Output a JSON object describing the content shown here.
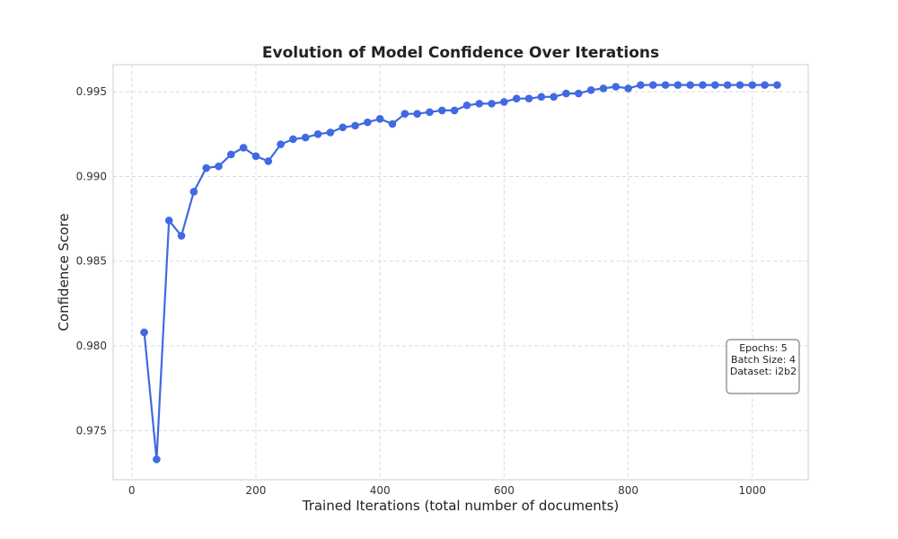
{
  "chart_data": {
    "type": "line",
    "title": "Evolution of Model Confidence Over Iterations",
    "xlabel": "Trained Iterations (total number of documents)",
    "ylabel": "Confidence Score",
    "xlim": [
      -30,
      1090
    ],
    "ylim": [
      0.9721,
      0.9966
    ],
    "xticks": [
      0,
      200,
      400,
      600,
      800,
      1000
    ],
    "xtick_labels": [
      "0",
      "200",
      "400",
      "600",
      "800",
      "1000"
    ],
    "yticks": [
      0.975,
      0.98,
      0.985,
      0.99,
      0.995
    ],
    "ytick_labels": [
      "0.975",
      "0.980",
      "0.985",
      "0.990",
      "0.995"
    ],
    "grid": true,
    "line_color": "#4169e1",
    "series": [
      {
        "x": [
          20,
          40,
          60,
          80,
          100,
          120,
          140,
          160,
          180,
          200,
          220,
          240,
          260,
          280,
          300,
          320,
          340,
          360,
          380,
          400,
          420,
          440,
          460,
          480,
          500,
          520,
          540,
          560,
          580,
          600,
          620,
          640,
          660,
          680,
          700,
          720,
          740,
          760,
          780,
          800,
          820,
          840,
          860,
          880,
          900,
          920,
          940,
          960,
          980,
          1000,
          1020,
          1040
        ],
        "y": [
          0.9808,
          0.9733,
          0.9874,
          0.9865,
          0.9891,
          0.9905,
          0.9906,
          0.9913,
          0.9917,
          0.9912,
          0.9909,
          0.9919,
          0.9922,
          0.9923,
          0.9925,
          0.9926,
          0.9929,
          0.993,
          0.9932,
          0.9934,
          0.9931,
          0.9937,
          0.9937,
          0.9938,
          0.9939,
          0.9939,
          0.9942,
          0.9943,
          0.9943,
          0.9944,
          0.9946,
          0.9946,
          0.9947,
          0.9947,
          0.9949,
          0.9949,
          0.9951,
          0.9952,
          0.9953,
          0.9952,
          0.9954,
          0.9954,
          0.9954,
          0.9954,
          0.9954,
          0.9954,
          0.9954,
          0.9954,
          0.9954,
          0.9954,
          0.9954,
          0.9954
        ]
      }
    ],
    "annotation": {
      "lines": [
        "Epochs: 5",
        "Batch Size: 4",
        "Dataset: i2b2"
      ],
      "placement": "right-lower"
    }
  }
}
